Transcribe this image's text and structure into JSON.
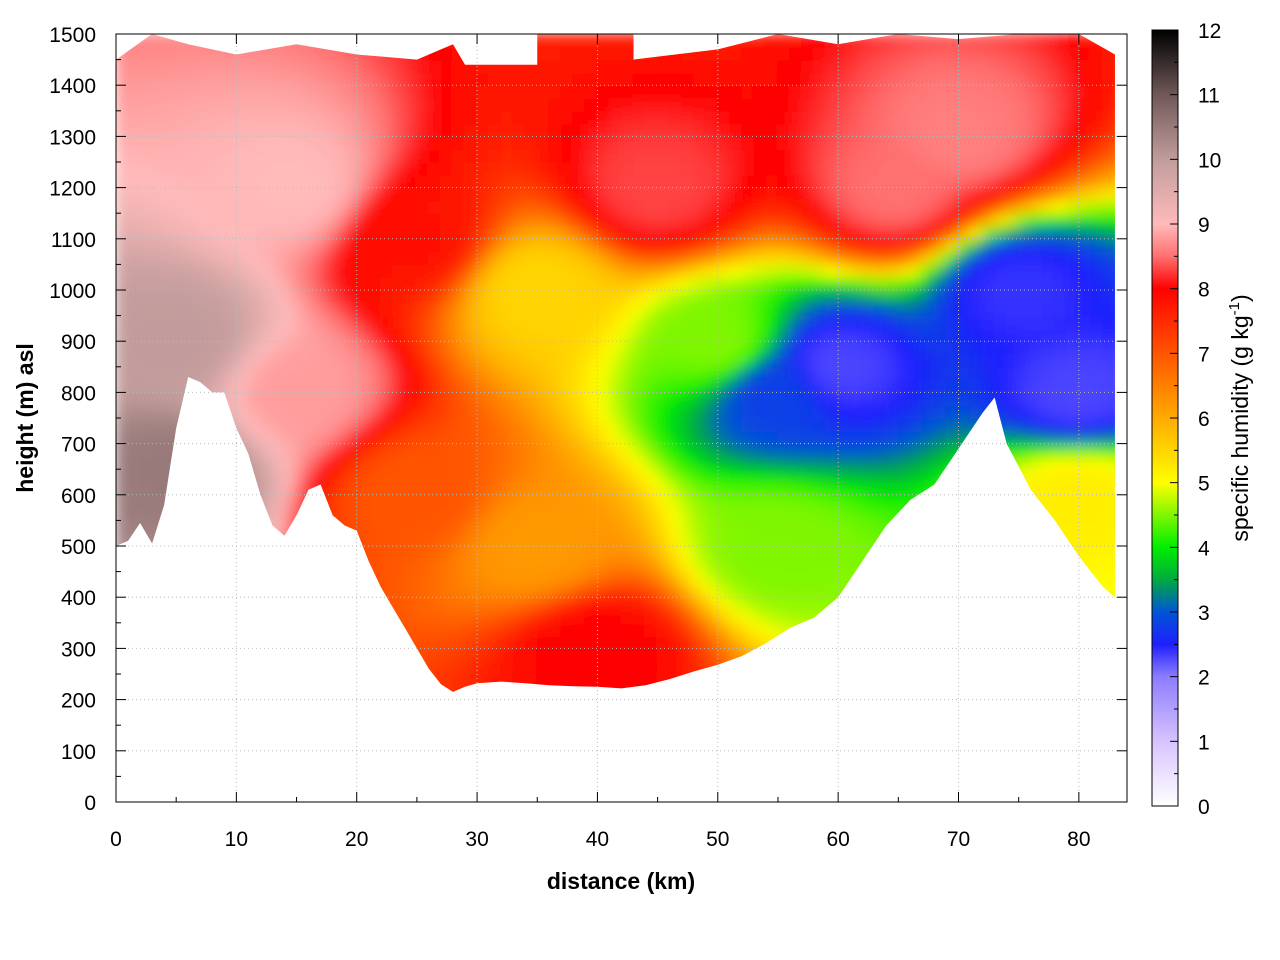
{
  "chart_data": {
    "type": "heatmap",
    "title": "",
    "xlabel": "distance (km)",
    "ylabel": "height (m) asl",
    "colorbar_label_main": "specific humidity (g kg",
    "colorbar_label_sup": "-1",
    "colorbar_label_end": ")",
    "xlim": [
      0,
      84
    ],
    "ylim": [
      0,
      1500
    ],
    "clim": [
      0,
      12
    ],
    "x_ticks": [
      0,
      10,
      20,
      30,
      40,
      50,
      60,
      70,
      80
    ],
    "y_ticks": [
      0,
      100,
      200,
      300,
      400,
      500,
      600,
      700,
      800,
      900,
      1000,
      1100,
      1200,
      1300,
      1400,
      1500
    ],
    "colorbar_ticks": [
      0,
      1,
      2,
      3,
      4,
      5,
      6,
      7,
      8,
      9,
      10,
      11,
      12
    ],
    "grid": true,
    "colormap": [
      {
        "v": 0,
        "c": "#ffffff"
      },
      {
        "v": 1,
        "c": "#d7c3ff"
      },
      {
        "v": 2,
        "c": "#8c7cff"
      },
      {
        "v": 2.5,
        "c": "#1f1fff"
      },
      {
        "v": 3,
        "c": "#0055d5"
      },
      {
        "v": 3.5,
        "c": "#00aa40"
      },
      {
        "v": 4,
        "c": "#00ee00"
      },
      {
        "v": 5,
        "c": "#ffff00"
      },
      {
        "v": 6,
        "c": "#ffaa00"
      },
      {
        "v": 7,
        "c": "#ff5500"
      },
      {
        "v": 8,
        "c": "#ff0000"
      },
      {
        "v": 8.5,
        "c": "#ff7070"
      },
      {
        "v": 9,
        "c": "#ffbaba"
      },
      {
        "v": 10,
        "c": "#c29c9c"
      },
      {
        "v": 11,
        "c": "#705858"
      },
      {
        "v": 12,
        "c": "#000000"
      }
    ],
    "terrain_floor": [
      [
        0,
        500
      ],
      [
        1,
        510
      ],
      [
        2,
        545
      ],
      [
        3,
        505
      ],
      [
        4,
        580
      ],
      [
        5,
        730
      ],
      [
        6,
        830
      ],
      [
        7,
        820
      ],
      [
        8,
        800
      ],
      [
        9,
        800
      ],
      [
        10,
        730
      ],
      [
        11,
        680
      ],
      [
        12,
        600
      ],
      [
        13,
        540
      ],
      [
        14,
        520
      ],
      [
        15,
        560
      ],
      [
        16,
        610
      ],
      [
        17,
        620
      ],
      [
        18,
        560
      ],
      [
        19,
        540
      ],
      [
        20,
        530
      ],
      [
        21,
        470
      ],
      [
        22,
        420
      ],
      [
        23,
        380
      ],
      [
        24,
        340
      ],
      [
        25,
        300
      ],
      [
        26,
        260
      ],
      [
        27,
        230
      ],
      [
        28,
        215
      ],
      [
        29,
        225
      ],
      [
        30,
        232
      ],
      [
        32,
        235
      ],
      [
        34,
        232
      ],
      [
        36,
        228
      ],
      [
        38,
        226
      ],
      [
        40,
        225
      ],
      [
        42,
        222
      ],
      [
        44,
        228
      ],
      [
        46,
        240
      ],
      [
        48,
        255
      ],
      [
        50,
        268
      ],
      [
        52,
        285
      ],
      [
        54,
        310
      ],
      [
        56,
        340
      ],
      [
        58,
        360
      ],
      [
        60,
        400
      ],
      [
        62,
        470
      ],
      [
        64,
        540
      ],
      [
        66,
        590
      ],
      [
        68,
        620
      ],
      [
        70,
        690
      ],
      [
        72,
        760
      ],
      [
        73,
        790
      ],
      [
        74,
        700
      ],
      [
        76,
        610
      ],
      [
        78,
        550
      ],
      [
        80,
        480
      ],
      [
        82,
        420
      ],
      [
        83,
        400
      ]
    ],
    "data_top": [
      [
        0,
        1450
      ],
      [
        3,
        1500
      ],
      [
        6,
        1480
      ],
      [
        10,
        1460
      ],
      [
        15,
        1480
      ],
      [
        20,
        1460
      ],
      [
        25,
        1450
      ],
      [
        28,
        1480
      ],
      [
        29,
        1440
      ],
      [
        35,
        1440
      ],
      [
        35,
        1500
      ],
      [
        43,
        1500
      ],
      [
        43,
        1450
      ],
      [
        50,
        1470
      ],
      [
        55,
        1500
      ],
      [
        60,
        1480
      ],
      [
        65,
        1500
      ],
      [
        70,
        1490
      ],
      [
        75,
        1500
      ],
      [
        80,
        1500
      ],
      [
        83,
        1460
      ]
    ],
    "humidity_samples": [
      {
        "x": 5,
        "y": 900,
        "q": 10.0
      },
      {
        "x": 5,
        "y": 650,
        "q": 10.5
      },
      {
        "x": 15,
        "y": 1200,
        "q": 9.0
      },
      {
        "x": 15,
        "y": 800,
        "q": 8.8
      },
      {
        "x": 25,
        "y": 1100,
        "q": 7.8
      },
      {
        "x": 25,
        "y": 600,
        "q": 7.0
      },
      {
        "x": 35,
        "y": 1000,
        "q": 5.5
      },
      {
        "x": 35,
        "y": 500,
        "q": 6.2
      },
      {
        "x": 40,
        "y": 300,
        "q": 8.0
      },
      {
        "x": 45,
        "y": 1200,
        "q": 8.3
      },
      {
        "x": 50,
        "y": 900,
        "q": 4.5
      },
      {
        "x": 55,
        "y": 800,
        "q": 2.8
      },
      {
        "x": 55,
        "y": 500,
        "q": 4.5
      },
      {
        "x": 60,
        "y": 850,
        "q": 2.3
      },
      {
        "x": 65,
        "y": 1200,
        "q": 8.5
      },
      {
        "x": 70,
        "y": 1300,
        "q": 8.6
      },
      {
        "x": 75,
        "y": 1000,
        "q": 2.4
      },
      {
        "x": 80,
        "y": 800,
        "q": 2.3
      },
      {
        "x": 80,
        "y": 600,
        "q": 5.2
      }
    ]
  }
}
